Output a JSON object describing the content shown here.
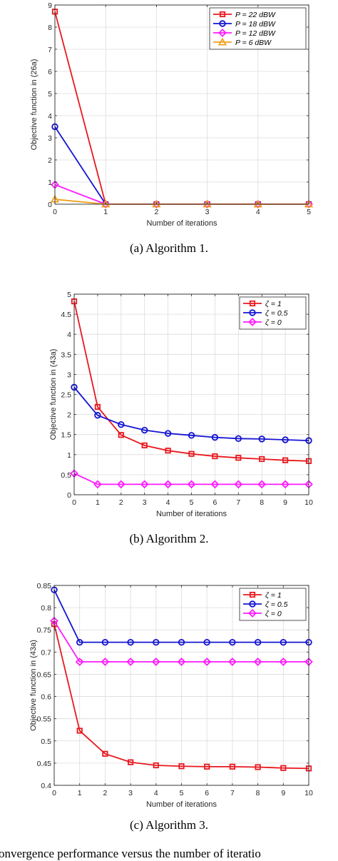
{
  "figure_caption": "onvergence performance versus the number of iteratio",
  "chart_data": [
    {
      "type": "line",
      "caption": "(a) Algorithm 1.",
      "xlabel": "Number of iterations",
      "ylabel": "Objective function in (26a)",
      "xlim": [
        0,
        5
      ],
      "ylim": [
        0,
        9
      ],
      "xticks": [
        0,
        1,
        2,
        3,
        4,
        5
      ],
      "yticks": [
        0,
        1,
        2,
        3,
        4,
        5,
        6,
        7,
        8,
        9
      ],
      "grid": true,
      "legend_position": "top-right",
      "x": [
        0,
        1,
        2,
        3,
        4,
        5
      ],
      "series": [
        {
          "name": "P = 22 dBW",
          "color": "#e8181e",
          "marker": "square",
          "values": [
            8.7,
            0,
            0,
            0,
            0,
            0
          ]
        },
        {
          "name": "P = 18 dBW",
          "color": "#1414d2",
          "marker": "circle",
          "values": [
            3.5,
            0,
            0,
            0,
            0,
            0
          ]
        },
        {
          "name": "P = 12 dBW",
          "color": "#ff1aff",
          "marker": "diamond",
          "values": [
            0.88,
            0,
            0,
            0,
            0,
            0
          ]
        },
        {
          "name": "P = 6 dBW",
          "color": "#f0a020",
          "marker": "triangle",
          "values": [
            0.22,
            0,
            0,
            0,
            0,
            0
          ]
        }
      ]
    },
    {
      "type": "line",
      "caption": "(b) Algorithm 2.",
      "xlabel": "Number of iterations",
      "ylabel": "Objective function in (43a)",
      "xlim": [
        0,
        10
      ],
      "ylim": [
        0,
        5
      ],
      "xticks": [
        0,
        1,
        2,
        3,
        4,
        5,
        6,
        7,
        8,
        9,
        10
      ],
      "yticks": [
        0,
        0.5,
        1,
        1.5,
        2,
        2.5,
        3,
        3.5,
        4,
        4.5,
        5
      ],
      "grid": true,
      "legend_position": "top-right",
      "x": [
        0,
        1,
        2,
        3,
        4,
        5,
        6,
        7,
        8,
        9,
        10
      ],
      "series": [
        {
          "name": "ζ = 1",
          "color": "#e8181e",
          "marker": "square",
          "values": [
            4.82,
            2.19,
            1.49,
            1.23,
            1.1,
            1.02,
            0.96,
            0.92,
            0.89,
            0.86,
            0.84
          ]
        },
        {
          "name": "ζ = 0.5",
          "color": "#1414d2",
          "marker": "circle",
          "values": [
            2.68,
            1.98,
            1.75,
            1.61,
            1.53,
            1.48,
            1.43,
            1.4,
            1.39,
            1.37,
            1.35
          ]
        },
        {
          "name": "ζ = 0",
          "color": "#ff1aff",
          "marker": "diamond",
          "values": [
            0.53,
            0.26,
            0.26,
            0.26,
            0.26,
            0.26,
            0.26,
            0.26,
            0.26,
            0.26,
            0.26
          ]
        }
      ]
    },
    {
      "type": "line",
      "caption": "(c) Algorithm 3.",
      "xlabel": "Number of iterations",
      "ylabel": "Objective function in (43a)",
      "xlim": [
        0,
        10
      ],
      "ylim": [
        0.4,
        0.85
      ],
      "xticks": [
        0,
        1,
        2,
        3,
        4,
        5,
        6,
        7,
        8,
        9,
        10
      ],
      "yticks": [
        0.4,
        0.45,
        0.5,
        0.55,
        0.6,
        0.65,
        0.7,
        0.75,
        0.8,
        0.85
      ],
      "grid": true,
      "legend_position": "top-right",
      "x": [
        0,
        1,
        2,
        3,
        4,
        5,
        6,
        7,
        8,
        9,
        10
      ],
      "series": [
        {
          "name": "ζ = 1",
          "color": "#e8181e",
          "marker": "square",
          "values": [
            0.763,
            0.523,
            0.471,
            0.452,
            0.445,
            0.443,
            0.442,
            0.442,
            0.441,
            0.439,
            0.438
          ]
        },
        {
          "name": "ζ = 0.5",
          "color": "#1414d2",
          "marker": "circle",
          "values": [
            0.84,
            0.722,
            0.722,
            0.722,
            0.722,
            0.722,
            0.722,
            0.722,
            0.722,
            0.722,
            0.722
          ]
        },
        {
          "name": "ζ = 0",
          "color": "#ff1aff",
          "marker": "diamond",
          "values": [
            0.77,
            0.678,
            0.678,
            0.678,
            0.678,
            0.678,
            0.678,
            0.678,
            0.678,
            0.678,
            0.678
          ]
        }
      ]
    }
  ]
}
